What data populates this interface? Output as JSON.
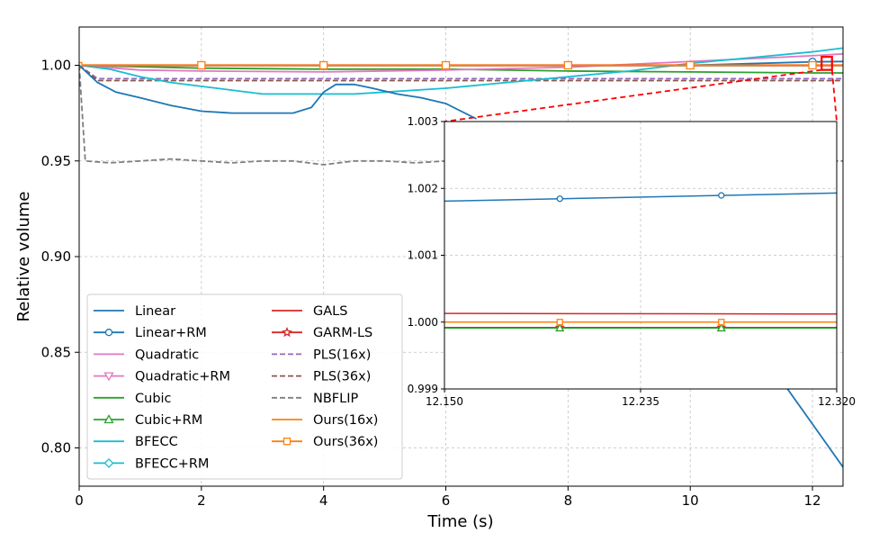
{
  "chart_data": {
    "type": "line",
    "title": "",
    "xlabel": "Time (s)",
    "ylabel": "Relative volume",
    "xlim": [
      0,
      12.5
    ],
    "ylim": [
      0.78,
      1.02
    ],
    "xticks": [
      0,
      2,
      4,
      6,
      8,
      10,
      12
    ],
    "yticks": [
      0.8,
      0.85,
      0.9,
      0.95,
      1.0
    ],
    "xtick_labels": [
      "0",
      "2",
      "4",
      "6",
      "8",
      "10",
      "12"
    ],
    "ytick_labels": [
      "0.80",
      "0.85",
      "0.90",
      "0.95",
      "1.00"
    ],
    "grid": true,
    "legend_position": "lower-left",
    "series": [
      {
        "name": "Linear",
        "color": "#1f77b4",
        "style": "solid",
        "marker": "none",
        "x": [
          0,
          0.3,
          0.6,
          1.0,
          1.5,
          2.0,
          2.5,
          3.0,
          3.5,
          3.8,
          4.0,
          4.2,
          4.5,
          4.8,
          5.2,
          5.6,
          6.0,
          6.5
        ],
        "y": [
          1.0,
          0.991,
          0.986,
          0.983,
          0.979,
          0.976,
          0.975,
          0.975,
          0.975,
          0.978,
          0.986,
          0.99,
          0.99,
          0.988,
          0.985,
          0.983,
          0.98,
          0.972
        ]
      },
      {
        "name": "Linear+RM",
        "color": "#1f77b4",
        "style": "solid",
        "marker": "circle",
        "x": [
          0,
          2,
          4,
          6,
          8,
          10,
          12,
          12.5
        ],
        "y": [
          1.0,
          1.0,
          1.0,
          1.0,
          1.0,
          1.0,
          1.0018,
          1.002
        ]
      },
      {
        "name": "Quadratic",
        "color": "#e377c2",
        "style": "solid",
        "marker": "none",
        "x": [
          0,
          1,
          2,
          4,
          6,
          8,
          10,
          12,
          12.5
        ],
        "y": [
          1.0,
          0.9975,
          0.997,
          0.9965,
          0.9975,
          0.999,
          1.002,
          1.005,
          1.006
        ]
      },
      {
        "name": "Quadratic+RM",
        "color": "#e377c2",
        "style": "solid",
        "marker": "triangle-down",
        "x": [
          0,
          12.5
        ],
        "y": [
          0.9999,
          0.9999
        ]
      },
      {
        "name": "Cubic",
        "color": "#2ca02c",
        "style": "solid",
        "marker": "none",
        "x": [
          0,
          2,
          4,
          6,
          8,
          10,
          12,
          12.5
        ],
        "y": [
          1.0,
          0.9985,
          0.998,
          0.998,
          0.997,
          0.9965,
          0.996,
          0.996
        ]
      },
      {
        "name": "Cubic+RM",
        "color": "#2ca02c",
        "style": "solid",
        "marker": "triangle-up",
        "x": [
          0,
          12.5
        ],
        "y": [
          0.9999,
          0.9999
        ]
      },
      {
        "name": "BFECC",
        "color": "#17becf",
        "style": "solid",
        "marker": "none",
        "x": [
          0,
          0.5,
          1.0,
          1.5,
          2.0,
          2.5,
          3.0,
          3.5,
          4.0,
          4.5,
          5.0,
          6.0,
          7.0,
          8.0,
          9.0,
          10.0,
          11.0,
          12.0,
          12.5
        ],
        "y": [
          1.0,
          0.998,
          0.994,
          0.991,
          0.989,
          0.987,
          0.985,
          0.985,
          0.985,
          0.985,
          0.986,
          0.988,
          0.991,
          0.994,
          0.997,
          1.001,
          1.004,
          1.007,
          1.009
        ]
      },
      {
        "name": "BFECC+RM",
        "color": "#17becf",
        "style": "solid",
        "marker": "diamond",
        "x": [
          0,
          12.5
        ],
        "y": [
          0.9999,
          0.9999
        ]
      },
      {
        "name": "GALS",
        "color": "#d62728",
        "style": "solid",
        "marker": "none",
        "x": [
          0,
          12.5
        ],
        "y": [
          1.0001,
          1.0001
        ]
      },
      {
        "name": "GARM-LS",
        "color": "#d62728",
        "style": "solid",
        "marker": "star",
        "x": [
          0,
          12.5
        ],
        "y": [
          0.9999,
          0.9999
        ]
      },
      {
        "name": "PLS(16x)",
        "color": "#9467bd",
        "style": "dashed",
        "marker": "none",
        "x": [
          0,
          0.3,
          12.5
        ],
        "y": [
          1.0,
          0.993,
          0.993
        ]
      },
      {
        "name": "PLS(36x)",
        "color": "#8c564b",
        "style": "dashed",
        "marker": "none",
        "x": [
          0,
          0.3,
          12.5
        ],
        "y": [
          1.0,
          0.992,
          0.992
        ]
      },
      {
        "name": "NBFLIP",
        "color": "#7f7f7f",
        "style": "dashed",
        "marker": "none",
        "x": [
          0,
          0.1,
          0.5,
          1.0,
          1.5,
          2.0,
          2.5,
          3.0,
          3.5,
          4.0,
          4.5,
          5.0,
          5.5,
          6.0,
          6.5,
          7.0
        ],
        "y": [
          1.0,
          0.95,
          0.949,
          0.95,
          0.951,
          0.95,
          0.949,
          0.95,
          0.95,
          0.948,
          0.95,
          0.95,
          0.949,
          0.95,
          0.95,
          0.95
        ]
      },
      {
        "name": "Ours(16x)",
        "color": "#ff7f0e",
        "style": "solid",
        "marker": "none",
        "x": [
          0,
          12.5
        ],
        "y": [
          1.0,
          1.0
        ]
      },
      {
        "name": "Ours(36x)",
        "color": "#ff7f0e",
        "style": "solid",
        "marker": "square",
        "x": [
          0,
          12.5
        ],
        "y": [
          1.0,
          1.0
        ]
      }
    ],
    "linear_tail": {
      "x": [
        10.9,
        12.5
      ],
      "y": [
        0.862,
        0.79
      ]
    },
    "nbflip_tail": {
      "x": [
        12.2,
        12.5
      ],
      "y": [
        0.95,
        0.95
      ]
    },
    "inset": {
      "xlim": [
        12.15,
        12.32
      ],
      "ylim": [
        0.999,
        1.003
      ],
      "xticks": [
        12.15,
        12.235,
        12.32
      ],
      "yticks": [
        0.999,
        1.0,
        1.001,
        1.002,
        1.003
      ],
      "xtick_labels": [
        "12.150",
        "12.235",
        "12.320"
      ],
      "ytick_labels": [
        "0.999",
        "1.000",
        "1.001",
        "1.002",
        "1.003"
      ],
      "lines": [
        {
          "name": "Linear+RM",
          "color": "#1f77b4",
          "x": [
            12.15,
            12.32
          ],
          "y": [
            1.00181,
            1.00193
          ],
          "marker": "circle",
          "marker_x": [
            12.2,
            12.27
          ]
        },
        {
          "name": "GALS",
          "color": "#d62728",
          "x": [
            12.15,
            12.32
          ],
          "y": [
            1.00013,
            1.00012
          ],
          "marker": "none",
          "marker_x": []
        },
        {
          "name": "GARM-LS",
          "color": "#d62728",
          "x": [
            12.15,
            12.32
          ],
          "y": [
            0.99992,
            0.99992
          ],
          "marker": "star",
          "marker_x": [
            12.2,
            12.27
          ]
        },
        {
          "name": "Cubic+RM",
          "color": "#2ca02c",
          "x": [
            12.15,
            12.32
          ],
          "y": [
            0.99991,
            0.99991
          ],
          "marker": "triangle-up",
          "marker_x": [
            12.2,
            12.27
          ]
        },
        {
          "name": "Ours(36x)",
          "color": "#ff7f0e",
          "x": [
            12.15,
            12.32
          ],
          "y": [
            1.0,
            1.0
          ],
          "marker": "square",
          "marker_x": [
            12.2,
            12.27
          ]
        }
      ],
      "zoom_box": {
        "x": [
          12.15,
          12.32
        ],
        "y": [
          0.999,
          1.003
        ]
      }
    }
  }
}
